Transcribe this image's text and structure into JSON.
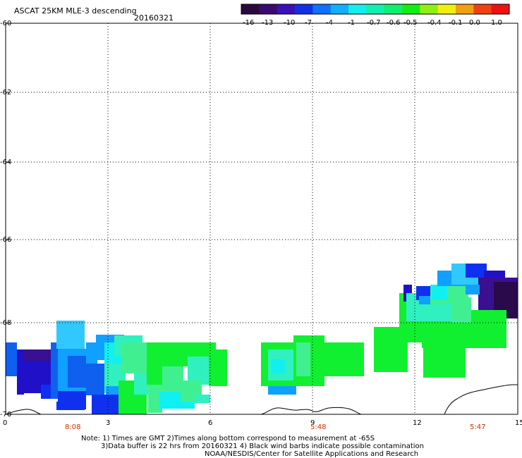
{
  "header": {
    "title": "ASCAT 25KM MLE-3 descending",
    "date": "20160321"
  },
  "colorbar": {
    "labels": [
      "-16",
      "-13",
      "-10",
      "-7",
      "-4",
      "-1",
      "-0.7",
      "-0.6",
      "-0.5",
      "-0.4",
      "-0.1",
      "0.0",
      "1.0"
    ],
    "colors": [
      "#2a0a3a",
      "#3a0a70",
      "#3a10b8",
      "#1030e8",
      "#1070ff",
      "#10b0ff",
      "#10f0f0",
      "#10f0b0",
      "#10f070",
      "#10f010",
      "#90f010",
      "#f0f010",
      "#f0a010",
      "#f04010",
      "#f01010"
    ]
  },
  "map": {
    "y_ticks": [
      "-60",
      "-62",
      "-64",
      "-66",
      "-68",
      "-70"
    ],
    "x_ticks": [
      "0",
      "3",
      "6",
      "9",
      "12",
      "15"
    ],
    "time_labels": [
      "8:08",
      "5:48",
      "5:47"
    ],
    "time_label_color": "#c83000",
    "grid": true
  },
  "notes": {
    "line1": "Note: 1) Times are GMT 2)Times along bottom correspond to measurement at -65S",
    "line2": "3)Data buffer is 22 hrs from 20160321 4) Black wind barbs indicate possible contamination",
    "line3": "NOAA/NESDIS/Center for Satellite Applications and Research"
  }
}
